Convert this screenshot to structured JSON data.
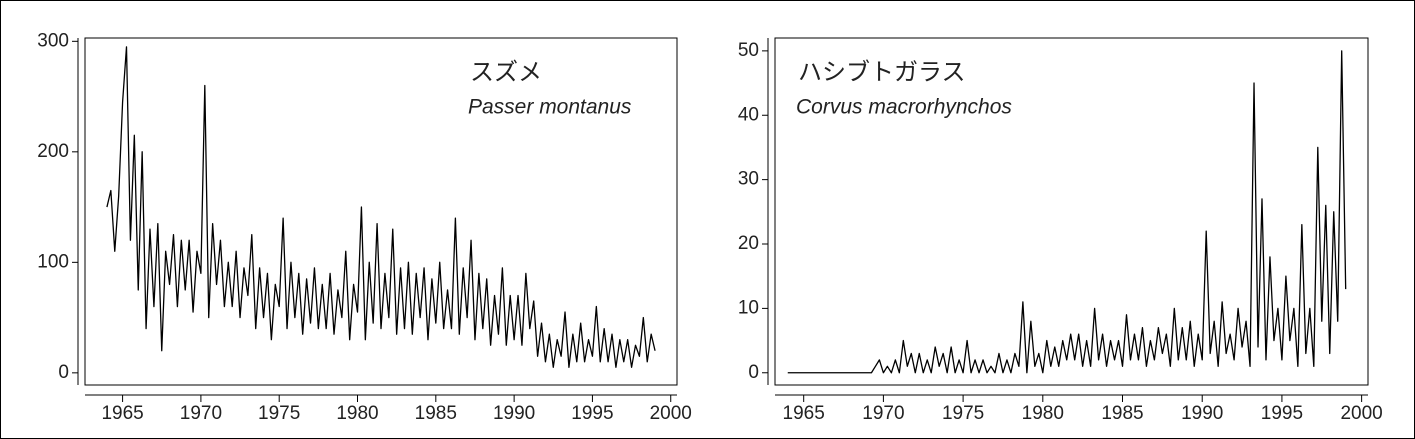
{
  "chart_data": [
    {
      "type": "line",
      "title": "スズメ",
      "subtitle": "Passer montanus",
      "color": "#000000",
      "xlim": [
        1962.6,
        2000.4
      ],
      "ylim": [
        -11,
        303
      ],
      "xticks": [
        1965,
        1970,
        1975,
        1980,
        1985,
        1990,
        1995,
        2000
      ],
      "yticks": [
        0,
        100,
        200,
        300
      ],
      "x": [
        1964,
        1964.25,
        1964.5,
        1964.75,
        1965,
        1965.25,
        1965.5,
        1965.75,
        1966,
        1966.25,
        1966.5,
        1966.75,
        1967,
        1967.25,
        1967.5,
        1967.75,
        1968,
        1968.25,
        1968.5,
        1968.75,
        1969,
        1969.25,
        1969.5,
        1969.75,
        1970,
        1970.25,
        1970.5,
        1970.75,
        1971,
        1971.25,
        1971.5,
        1971.75,
        1972,
        1972.25,
        1972.5,
        1972.75,
        1973,
        1973.25,
        1973.5,
        1973.75,
        1974,
        1974.25,
        1974.5,
        1974.75,
        1975,
        1975.25,
        1975.5,
        1975.75,
        1976,
        1976.25,
        1976.5,
        1976.75,
        1977,
        1977.25,
        1977.5,
        1977.75,
        1978,
        1978.25,
        1978.5,
        1978.75,
        1979,
        1979.25,
        1979.5,
        1979.75,
        1980,
        1980.25,
        1980.5,
        1980.75,
        1981,
        1981.25,
        1981.5,
        1981.75,
        1982,
        1982.25,
        1982.5,
        1982.75,
        1983,
        1983.25,
        1983.5,
        1983.75,
        1984,
        1984.25,
        1984.5,
        1984.75,
        1985,
        1985.25,
        1985.5,
        1985.75,
        1986,
        1986.25,
        1986.5,
        1986.75,
        1987,
        1987.25,
        1987.5,
        1987.75,
        1988,
        1988.25,
        1988.5,
        1988.75,
        1989,
        1989.25,
        1989.5,
        1989.75,
        1990,
        1990.25,
        1990.5,
        1990.75,
        1991,
        1991.25,
        1991.5,
        1991.75,
        1992,
        1992.25,
        1992.5,
        1992.75,
        1993,
        1993.25,
        1993.5,
        1993.75,
        1994,
        1994.25,
        1994.5,
        1994.75,
        1995,
        1995.25,
        1995.5,
        1995.75,
        1996,
        1996.25,
        1996.5,
        1996.75,
        1997,
        1997.25,
        1997.5,
        1997.75,
        1998,
        1998.25,
        1998.5,
        1998.75,
        1999
      ],
      "values": [
        150,
        165,
        110,
        160,
        245,
        295,
        120,
        215,
        75,
        200,
        40,
        130,
        60,
        135,
        20,
        110,
        80,
        125,
        60,
        120,
        75,
        120,
        55,
        110,
        90,
        260,
        50,
        135,
        80,
        120,
        60,
        100,
        60,
        110,
        50,
        95,
        70,
        125,
        40,
        95,
        50,
        90,
        30,
        80,
        60,
        140,
        40,
        100,
        50,
        90,
        35,
        85,
        45,
        95,
        40,
        80,
        40,
        90,
        35,
        75,
        50,
        110,
        30,
        80,
        55,
        150,
        30,
        100,
        45,
        135,
        40,
        90,
        50,
        130,
        35,
        95,
        40,
        100,
        35,
        90,
        50,
        95,
        30,
        85,
        45,
        100,
        40,
        75,
        40,
        140,
        35,
        95,
        50,
        120,
        30,
        90,
        40,
        85,
        25,
        70,
        35,
        95,
        25,
        70,
        30,
        70,
        25,
        90,
        40,
        65,
        15,
        45,
        10,
        35,
        5,
        30,
        15,
        55,
        5,
        35,
        10,
        45,
        10,
        30,
        15,
        60,
        10,
        40,
        10,
        35,
        5,
        30,
        10,
        30,
        5,
        25,
        15,
        50,
        10,
        35,
        20
      ]
    },
    {
      "type": "line",
      "title": "ハシブトガラス",
      "subtitle": "Corvus macrorhynchos",
      "color": "#000000",
      "xlim": [
        1963.2,
        2000.4
      ],
      "ylim": [
        -1.9,
        52
      ],
      "xticks": [
        1965,
        1970,
        1975,
        1980,
        1985,
        1990,
        1995,
        2000
      ],
      "yticks": [
        0,
        10,
        20,
        30,
        40,
        50
      ],
      "x": [
        1964,
        1964.25,
        1964.5,
        1964.75,
        1965,
        1965.25,
        1965.5,
        1965.75,
        1966,
        1966.25,
        1966.5,
        1966.75,
        1967,
        1967.25,
        1967.5,
        1967.75,
        1968,
        1968.25,
        1968.5,
        1968.75,
        1969,
        1969.25,
        1969.5,
        1969.75,
        1970,
        1970.25,
        1970.5,
        1970.75,
        1971,
        1971.25,
        1971.5,
        1971.75,
        1972,
        1972.25,
        1972.5,
        1972.75,
        1973,
        1973.25,
        1973.5,
        1973.75,
        1974,
        1974.25,
        1974.5,
        1974.75,
        1975,
        1975.25,
        1975.5,
        1975.75,
        1976,
        1976.25,
        1976.5,
        1976.75,
        1977,
        1977.25,
        1977.5,
        1977.75,
        1978,
        1978.25,
        1978.5,
        1978.75,
        1979,
        1979.25,
        1979.5,
        1979.75,
        1980,
        1980.25,
        1980.5,
        1980.75,
        1981,
        1981.25,
        1981.5,
        1981.75,
        1982,
        1982.25,
        1982.5,
        1982.75,
        1983,
        1983.25,
        1983.5,
        1983.75,
        1984,
        1984.25,
        1984.5,
        1984.75,
        1985,
        1985.25,
        1985.5,
        1985.75,
        1986,
        1986.25,
        1986.5,
        1986.75,
        1987,
        1987.25,
        1987.5,
        1987.75,
        1988,
        1988.25,
        1988.5,
        1988.75,
        1989,
        1989.25,
        1989.5,
        1989.75,
        1990,
        1990.25,
        1990.5,
        1990.75,
        1991,
        1991.25,
        1991.5,
        1991.75,
        1992,
        1992.25,
        1992.5,
        1992.75,
        1993,
        1993.25,
        1993.5,
        1993.75,
        1994,
        1994.25,
        1994.5,
        1994.75,
        1995,
        1995.25,
        1995.5,
        1995.75,
        1996,
        1996.25,
        1996.5,
        1996.75,
        1997,
        1997.25,
        1997.5,
        1997.75,
        1998,
        1998.25,
        1998.5,
        1998.75,
        1999
      ],
      "values": [
        0,
        0,
        0,
        0,
        0,
        0,
        0,
        0,
        0,
        0,
        0,
        0,
        0,
        0,
        0,
        0,
        0,
        0,
        0,
        0,
        0,
        0,
        1,
        2,
        0,
        1,
        0,
        2,
        0,
        5,
        1,
        3,
        0,
        3,
        0,
        2,
        0,
        4,
        1,
        3,
        0,
        4,
        0,
        2,
        0,
        5,
        0,
        2,
        0,
        2,
        0,
        1,
        0,
        3,
        0,
        2,
        0,
        3,
        1,
        11,
        0,
        8,
        1,
        3,
        0,
        5,
        1,
        4,
        1,
        5,
        2,
        6,
        2,
        6,
        1,
        5,
        1,
        10,
        2,
        6,
        1,
        5,
        2,
        5,
        1,
        9,
        2,
        6,
        2,
        7,
        1,
        5,
        2,
        7,
        3,
        6,
        1,
        10,
        2,
        7,
        2,
        8,
        1,
        6,
        2,
        22,
        3,
        8,
        1,
        11,
        3,
        6,
        2,
        10,
        4,
        8,
        1,
        45,
        4,
        27,
        2,
        18,
        5,
        10,
        2,
        15,
        5,
        10,
        1,
        23,
        3,
        10,
        1,
        35,
        8,
        26,
        3,
        25,
        8,
        50,
        13
      ]
    }
  ]
}
